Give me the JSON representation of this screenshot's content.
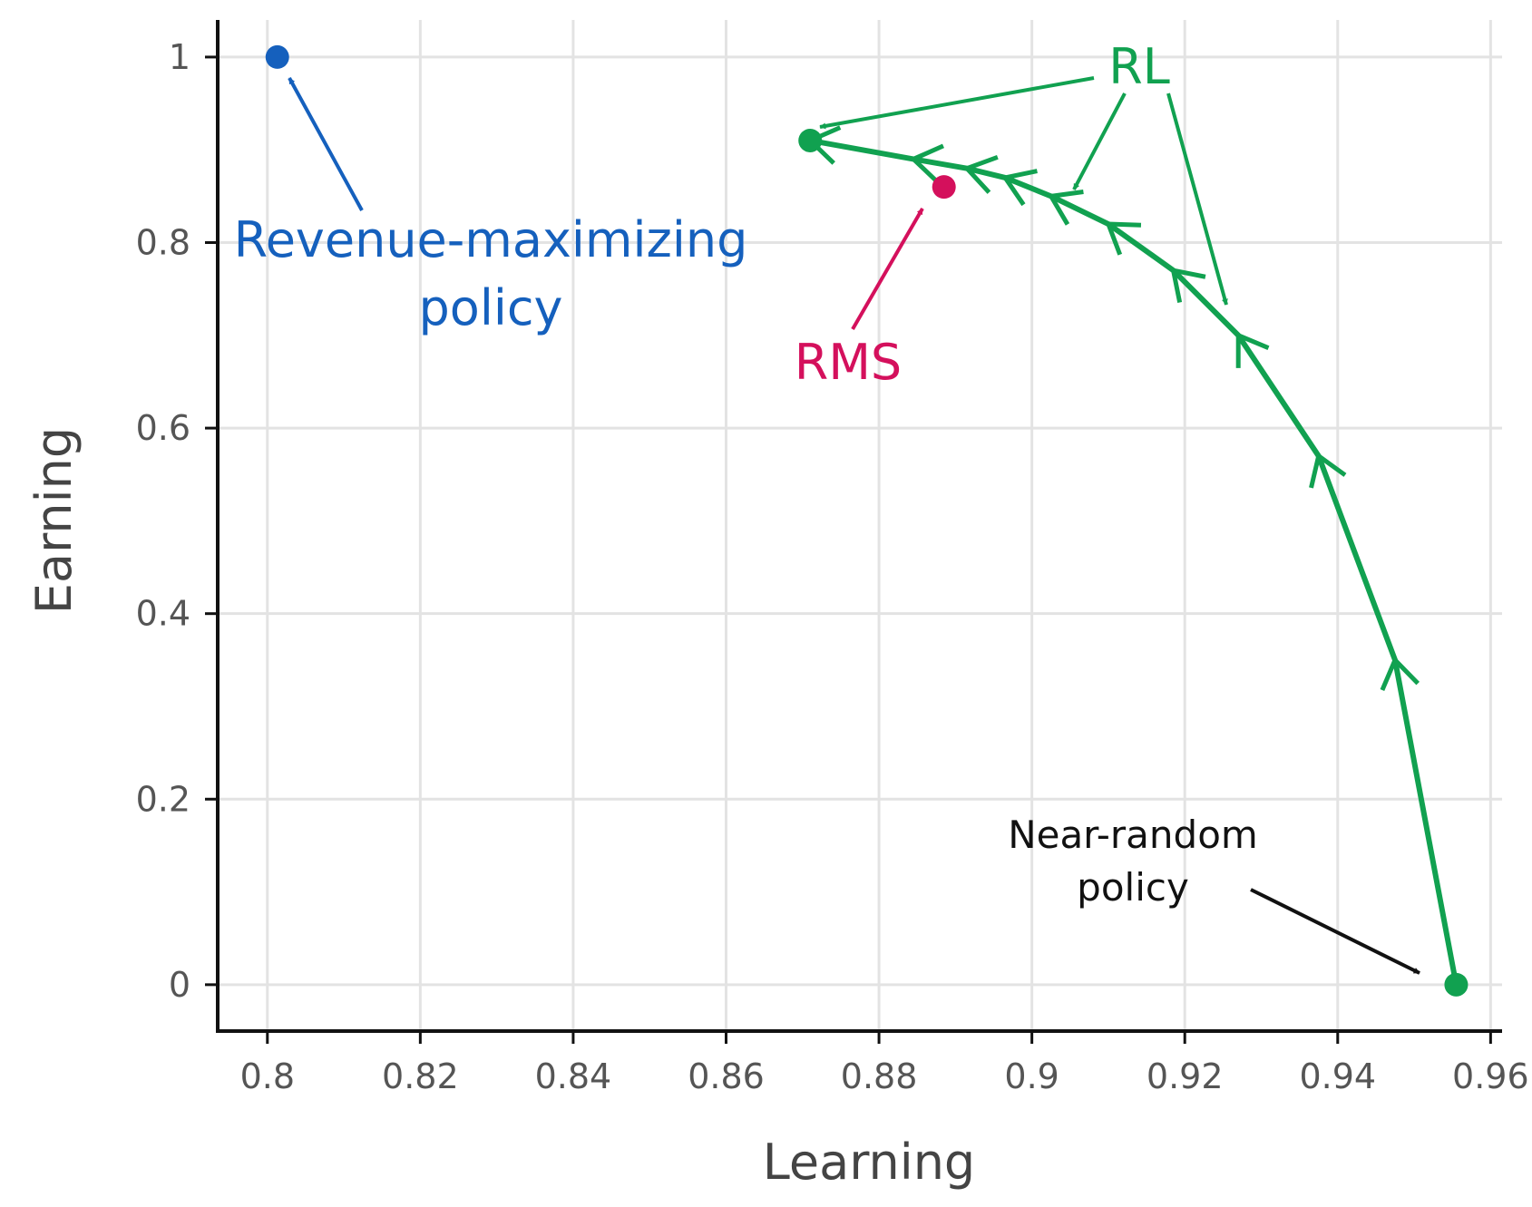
{
  "chart_data": {
    "type": "scatter",
    "xlabel": "Learning",
    "ylabel": "Earning",
    "xlim": [
      0.7935,
      0.9615
    ],
    "ylim": [
      -0.05,
      1.04
    ],
    "xticks": [
      0.8,
      0.82,
      0.84,
      0.86,
      0.88,
      0.9,
      0.92,
      0.94,
      0.96
    ],
    "xtick_labels": [
      "0.8",
      "0.82",
      "0.84",
      "0.86",
      "0.88",
      "0.9",
      "0.92",
      "0.94",
      "0.96"
    ],
    "yticks": [
      0,
      0.2,
      0.4,
      0.6,
      0.8,
      1
    ],
    "ytick_labels": [
      "0",
      "0.2",
      "0.4",
      "0.6",
      "0.8",
      "1"
    ],
    "grid": true,
    "colors": {
      "rl": "#11a150",
      "revenue": "#1560bd",
      "rms": "#d4105c",
      "near_random": "#111111",
      "grid": "#e3e3e3",
      "axis": "#111111"
    },
    "rl_path": {
      "x": [
        0.9555,
        0.9475,
        0.9375,
        0.927,
        0.9185,
        0.91,
        0.9025,
        0.8965,
        0.8915,
        0.8845,
        0.871
      ],
      "y": [
        0.0,
        0.35,
        0.57,
        0.7,
        0.77,
        0.82,
        0.85,
        0.87,
        0.88,
        0.89,
        0.91
      ]
    },
    "points": [
      {
        "id": "revenue-maximizing",
        "x": 0.8013,
        "y": 1.0,
        "color_key": "revenue"
      },
      {
        "id": "rl-end",
        "x": 0.871,
        "y": 0.91,
        "color_key": "rl"
      },
      {
        "id": "rms",
        "x": 0.8885,
        "y": 0.86,
        "color_key": "rms"
      },
      {
        "id": "near-random",
        "x": 0.9555,
        "y": 0.0,
        "color_key": "rl"
      }
    ],
    "annotations": [
      {
        "id": "revenue",
        "lines": [
          "Revenue-maximizing",
          "policy"
        ],
        "color_key": "revenue"
      },
      {
        "id": "rms",
        "lines": [
          "RMS"
        ],
        "color_key": "rms"
      },
      {
        "id": "rl",
        "lines": [
          "RL"
        ],
        "color_key": "rl"
      },
      {
        "id": "near-random",
        "lines": [
          "Near-random",
          "policy"
        ],
        "color_key": "near_random"
      }
    ]
  }
}
